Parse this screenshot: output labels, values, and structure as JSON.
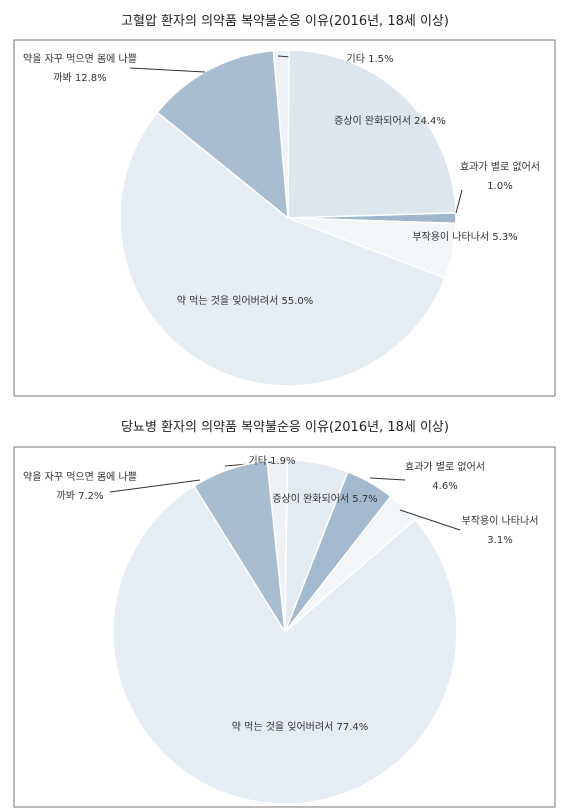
{
  "chart_data": [
    {
      "type": "pie",
      "title": "고혈압 환자의 의약품 복약불순응 이유(2016년, 18세 이상)",
      "categories": [
        "기타",
        "증상이 완화되어서",
        "효과가 별로 없어서",
        "부작용이 나타나서",
        "약 먹는 것을 잊어버려서",
        "약을 자꾸 먹으면 몸에 나쁠까봐"
      ],
      "values": [
        1.5,
        24.4,
        1.0,
        5.3,
        55.0,
        12.8
      ],
      "value_labels": [
        "1.5%",
        "24.4%",
        "1.0%",
        "5.3%",
        "55.0%",
        "12.8%"
      ],
      "colors": [
        "#eef2f6",
        "#dde5ee",
        "#9fb6cc",
        "#f3f6f9",
        "#e6ecf3",
        "#a9bdd1"
      ]
    },
    {
      "type": "pie",
      "title": "당뇨병 환자의 의약품 복약불순응 이유(2016년, 18세 이상)",
      "categories": [
        "기타",
        "증상이 완화되어서",
        "효과가 별로 없어서",
        "부작용이 나타나서",
        "약 먹는 것을 잊어버려서",
        "약을 자꾸 먹으면 몸에 나쁠까봐"
      ],
      "values": [
        1.9,
        5.7,
        4.6,
        3.1,
        77.4,
        7.2
      ],
      "value_labels": [
        "1.9%",
        "5.7%",
        "4.6%",
        "3.1%",
        "77.4%",
        "7.2%"
      ],
      "colors": [
        "#eef2f6",
        "#e4eaf1",
        "#a3b9ce",
        "#f3f6f9",
        "#e6ecf3",
        "#a9bdd1"
      ]
    }
  ]
}
